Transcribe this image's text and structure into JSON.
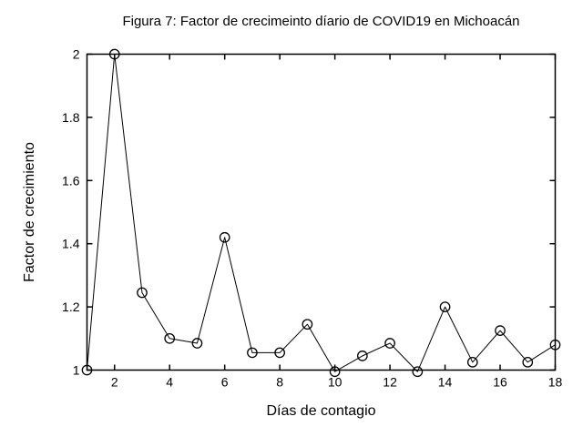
{
  "chart_data": {
    "type": "line",
    "title": "Figura 7: Factor de crecimeinto díario de COVID19 en Michoacán",
    "xlabel": "Días de contagio",
    "ylabel": "Factor de crecimiento",
    "x": [
      1,
      2,
      3,
      4,
      5,
      6,
      7,
      8,
      9,
      10,
      11,
      12,
      13,
      14,
      15,
      16,
      17,
      18
    ],
    "y": [
      1.0,
      2.0,
      1.245,
      1.1,
      1.085,
      1.42,
      1.055,
      1.055,
      1.145,
      0.995,
      1.045,
      1.085,
      0.995,
      1.2,
      1.025,
      1.125,
      1.025,
      1.08
    ],
    "xlim": [
      1,
      18
    ],
    "ylim": [
      1,
      2
    ],
    "x_ticks": [
      2,
      4,
      6,
      8,
      10,
      12,
      14,
      16,
      18
    ],
    "x_tick_labels": [
      "2",
      "4",
      "6",
      "8",
      "10",
      "12",
      "14",
      "16",
      "18"
    ],
    "y_ticks": [
      1,
      1.2,
      1.4,
      1.6,
      1.8,
      2
    ],
    "y_tick_labels": [
      "1",
      "1.2",
      "1.4",
      "1.6",
      "1.8",
      "2"
    ],
    "grid": false,
    "legend_position": "none",
    "marker": "open-circle",
    "line_color": "#000000",
    "marker_color": "#000000",
    "axis_color": "#000000",
    "text_color": "#000000",
    "background": "#ffffff"
  }
}
